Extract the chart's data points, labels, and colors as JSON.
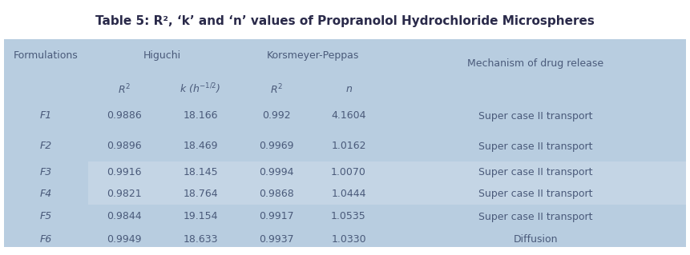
{
  "title": "Table 5: R², ‘k’ and ‘n’ values of Propranolol Hydrochloride Microspheres",
  "bg_color": "#b8cde0",
  "data_bg_alt": "#c4d5e5",
  "outer_bg": "#ffffff",
  "rows": [
    [
      "F1",
      "0.9886",
      "18.166",
      "0.992",
      "4.1604",
      "Super case II transport"
    ],
    [
      "F2",
      "0.9896",
      "18.469",
      "0.9969",
      "1.0162",
      "Super case II transport"
    ],
    [
      "F3",
      "0.9916",
      "18.145",
      "0.9994",
      "1.0070",
      "Super case II transport"
    ],
    [
      "F4",
      "0.9821",
      "18.764",
      "0.9868",
      "1.0444",
      "Super case II transport"
    ],
    [
      "F5",
      "0.9844",
      "19.154",
      "0.9917",
      "1.0535",
      "Super case II transport"
    ],
    [
      "F6",
      "0.9949",
      "18.633",
      "0.9937",
      "1.0330",
      "Diffusion"
    ]
  ],
  "row_band": [
    0,
    0,
    1,
    1,
    0,
    0
  ],
  "text_color": "#4a5a7a",
  "title_color": "#2a2a4a",
  "font_size": 9.0,
  "title_font_size": 11.0,
  "figw": 8.61,
  "figh": 3.19,
  "dpi": 100
}
